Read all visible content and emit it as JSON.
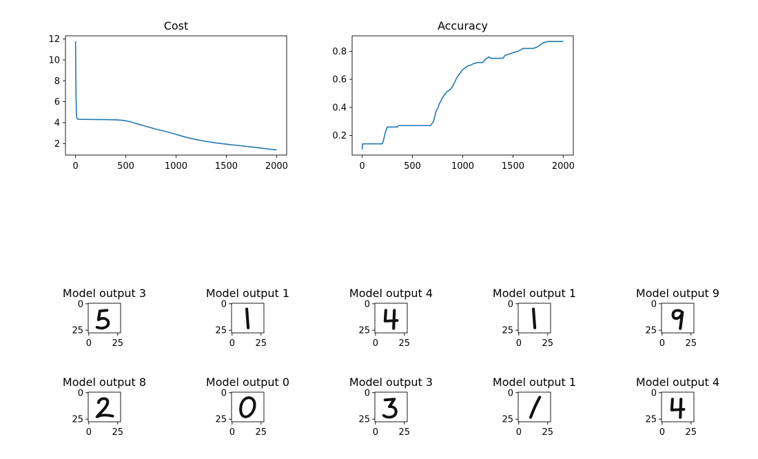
{
  "chart_data": [
    {
      "type": "line",
      "title": "Cost",
      "xlabel": "",
      "ylabel": "",
      "xlim": [
        -100,
        2100
      ],
      "ylim": [
        0.9,
        12.3
      ],
      "xticks": [
        0,
        500,
        1000,
        1500,
        2000
      ],
      "yticks": [
        2,
        4,
        6,
        8,
        10,
        12
      ],
      "grid": false,
      "line_color": "#1f77b4",
      "series": [
        {
          "x": [
            0,
            5,
            10,
            15,
            20,
            30,
            40,
            60,
            100,
            200,
            300,
            400,
            450,
            500,
            550,
            600,
            700,
            800,
            900,
            1000,
            1100,
            1200,
            1300,
            1400,
            1500,
            1600,
            1700,
            1800,
            1900,
            2000
          ],
          "values": [
            11.8,
            6.5,
            4.6,
            4.4,
            4.35,
            4.33,
            4.32,
            4.31,
            4.31,
            4.3,
            4.29,
            4.27,
            4.24,
            4.18,
            4.07,
            3.92,
            3.65,
            3.38,
            3.15,
            2.88,
            2.6,
            2.38,
            2.2,
            2.06,
            1.94,
            1.83,
            1.73,
            1.62,
            1.5,
            1.38
          ]
        }
      ]
    },
    {
      "type": "line",
      "title": "Accuracy",
      "xlabel": "",
      "ylabel": "",
      "xlim": [
        -100,
        2100
      ],
      "ylim": [
        0.06,
        0.91
      ],
      "xticks": [
        0,
        500,
        1000,
        1500,
        2000
      ],
      "yticks": [
        0.2,
        0.4,
        0.6,
        0.8
      ],
      "grid": false,
      "line_color": "#1f77b4",
      "series": [
        {
          "x": [
            0,
            5,
            200,
            210,
            220,
            230,
            240,
            250,
            260,
            350,
            360,
            680,
            690,
            700,
            710,
            720,
            730,
            740,
            750,
            760,
            770,
            780,
            790,
            800,
            810,
            820,
            840,
            860,
            880,
            900,
            920,
            940,
            960,
            980,
            1000,
            1020,
            1040,
            1060,
            1080,
            1100,
            1150,
            1200,
            1220,
            1240,
            1260,
            1280,
            1300,
            1400,
            1420,
            1460,
            1500,
            1550,
            1600,
            1700,
            1740,
            1760,
            1780,
            1800,
            1850,
            2000
          ],
          "values": [
            0.1,
            0.14,
            0.14,
            0.16,
            0.19,
            0.22,
            0.24,
            0.26,
            0.26,
            0.26,
            0.27,
            0.27,
            0.28,
            0.29,
            0.3,
            0.33,
            0.36,
            0.38,
            0.39,
            0.41,
            0.43,
            0.44,
            0.46,
            0.47,
            0.48,
            0.49,
            0.51,
            0.52,
            0.53,
            0.55,
            0.58,
            0.61,
            0.63,
            0.65,
            0.67,
            0.68,
            0.69,
            0.7,
            0.7,
            0.71,
            0.72,
            0.72,
            0.74,
            0.75,
            0.76,
            0.75,
            0.75,
            0.75,
            0.77,
            0.78,
            0.79,
            0.8,
            0.82,
            0.82,
            0.83,
            0.84,
            0.85,
            0.86,
            0.87,
            0.87
          ]
        }
      ]
    }
  ],
  "digit_axis": {
    "ticks": [
      0,
      25
    ],
    "range": [
      0,
      28
    ]
  },
  "panels": [
    {
      "title": "Model output 3",
      "digit": "5"
    },
    {
      "title": "Model output 1",
      "digit": "1"
    },
    {
      "title": "Model output 4",
      "digit": "4"
    },
    {
      "title": "Model output 1",
      "digit": "1"
    },
    {
      "title": "Model output 9",
      "digit": "9"
    },
    {
      "title": "Model output 8",
      "digit": "2"
    },
    {
      "title": "Model output 0",
      "digit": "0"
    },
    {
      "title": "Model output 3",
      "digit": "3"
    },
    {
      "title": "Model output 1",
      "digit": "1"
    },
    {
      "title": "Model output 4",
      "digit": "4"
    }
  ]
}
